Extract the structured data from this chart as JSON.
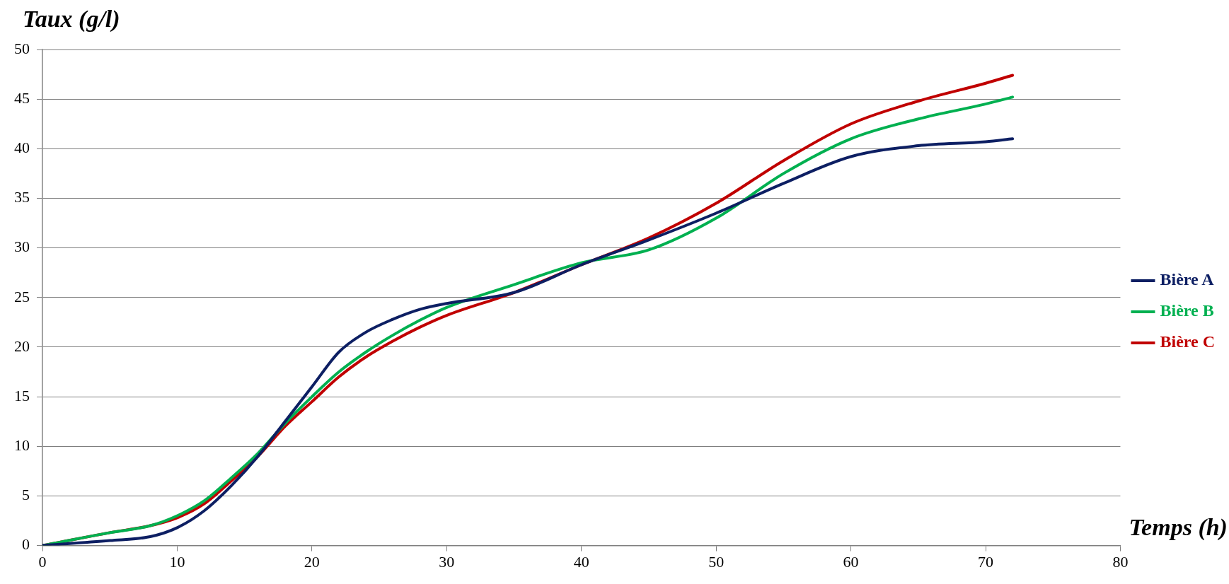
{
  "chart_data": {
    "type": "line",
    "xlabel": "Temps (h)",
    "ylabel": "Taux (g/l)",
    "x": [
      0,
      5,
      8,
      10,
      12,
      14,
      16,
      18,
      20,
      22,
      24,
      26,
      28,
      30,
      35,
      40,
      45,
      50,
      55,
      60,
      65,
      70,
      72
    ],
    "series": [
      {
        "name": "Bière A",
        "color": "#0d1f63",
        "values": [
          0,
          0.5,
          0.9,
          1.8,
          3.5,
          6,
          9,
          12.5,
          16,
          19.5,
          21.5,
          22.8,
          23.8,
          24.4,
          25.5,
          28.3,
          30.8,
          33.5,
          36.5,
          39.2,
          40.3,
          40.7,
          41
        ]
      },
      {
        "name": "Bière B",
        "color": "#00b050",
        "values": [
          0,
          1.3,
          2,
          3,
          4.5,
          6.8,
          9.3,
          12.3,
          15,
          17.5,
          19.5,
          21.2,
          22.7,
          24,
          26.3,
          28.5,
          29.8,
          33,
          37.5,
          41,
          43,
          44.5,
          45.2
        ]
      },
      {
        "name": "Bière C",
        "color": "#c00000",
        "values": [
          0,
          1.3,
          2,
          2.8,
          4.2,
          6.5,
          9,
          12,
          14.5,
          17,
          19,
          20.6,
          22,
          23.2,
          25.5,
          28.3,
          31,
          34.5,
          38.8,
          42.5,
          44.8,
          46.6,
          47.4
        ]
      }
    ],
    "xlim": [
      0,
      80
    ],
    "xticks": [
      0,
      10,
      20,
      30,
      40,
      50,
      60,
      70,
      80
    ],
    "ylim": [
      0,
      50
    ],
    "yticks": [
      0,
      5,
      10,
      15,
      20,
      25,
      30,
      35,
      40,
      45,
      50
    ],
    "grid": "y",
    "legend": "right",
    "marker": "none",
    "line_style": "solid"
  }
}
